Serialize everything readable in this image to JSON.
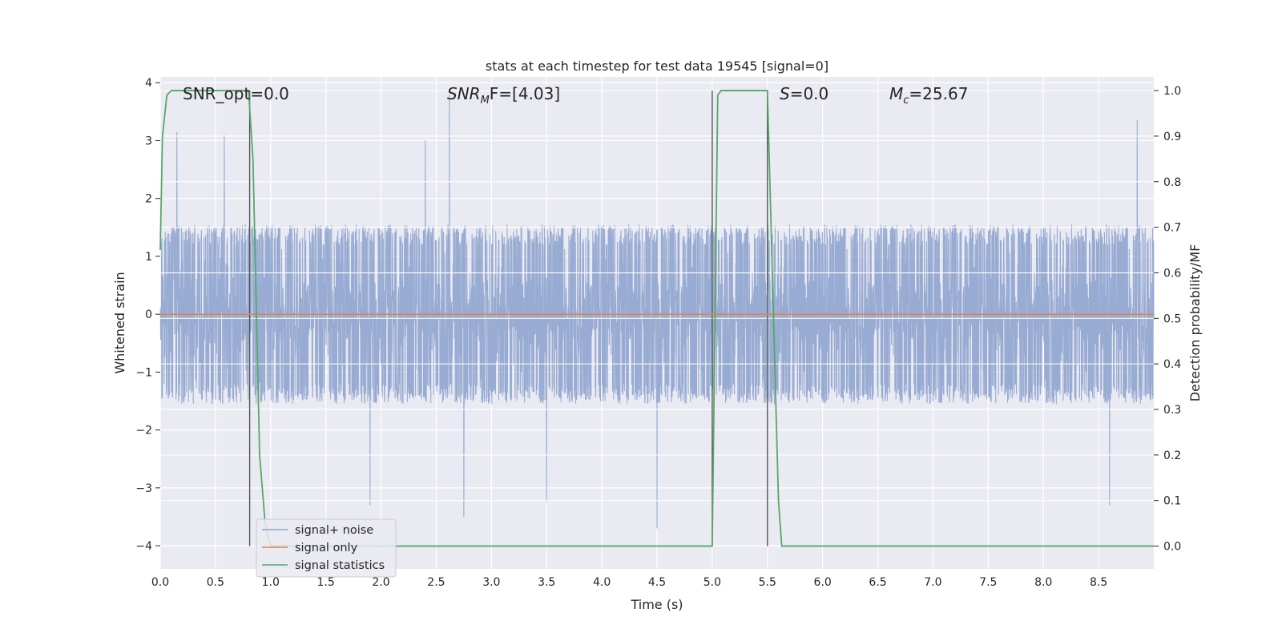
{
  "chart_data": {
    "type": "line",
    "title": "stats at each timestep for test data 19545 [signal=0]",
    "xlabel": "Time (s)",
    "ylabel": "Whitened strain",
    "y2label": "Detection probability/MF",
    "xlim": [
      0.0,
      9.0
    ],
    "ylim": [
      -4.4,
      4.1
    ],
    "y2lim": [
      -0.05,
      1.03
    ],
    "xticks": [
      "0.0",
      "0.5",
      "1.0",
      "1.5",
      "2.0",
      "2.5",
      "3.0",
      "3.5",
      "4.0",
      "4.5",
      "5.0",
      "5.5",
      "6.0",
      "6.5",
      "7.0",
      "7.5",
      "8.0",
      "8.5"
    ],
    "yticks": [
      "4",
      "3",
      "2",
      "1",
      "0",
      "−1",
      "−2",
      "−3",
      "−4"
    ],
    "y2ticks": [
      "1.0",
      "0.9",
      "0.8",
      "0.7",
      "0.6",
      "0.5",
      "0.4",
      "0.3",
      "0.2",
      "0.1",
      "0.0"
    ],
    "grid": true,
    "legend_position": "lower-left",
    "annotations": {
      "snr_opt": "SNR_opt=0.0",
      "snr_mf_main": "SNR",
      "snr_mf_sub": "M",
      "snr_mf_rest": "F=[4.03]",
      "s_main": "S",
      "s_rest": "=0.0",
      "mc_main": "M",
      "mc_sub": "c",
      "mc_rest": "=25.67"
    },
    "vlines": [
      0.81,
      5.0,
      5.5
    ],
    "series": [
      {
        "name": "signal+ noise",
        "color": "#8fa4ce",
        "axis": "left",
        "description": "whitened noise, roughly uniform amplitude about ±1.5 with spikes to ±3.7",
        "sample_rate": 512,
        "peaks": [
          [
            0.15,
            3.15
          ],
          [
            0.58,
            3.1
          ],
          [
            2.62,
            3.8
          ],
          [
            2.4,
            3.0
          ],
          [
            8.85,
            3.35
          ],
          [
            4.5,
            -3.7
          ],
          [
            2.75,
            -3.5
          ],
          [
            1.9,
            -3.3
          ],
          [
            3.5,
            -3.25
          ],
          [
            8.6,
            -3.3
          ]
        ]
      },
      {
        "name": "signal only",
        "color": "#dd8452",
        "axis": "left",
        "x": [
          0.0,
          9.0
        ],
        "y": [
          0.0,
          0.0
        ]
      },
      {
        "name": "signal statistics",
        "color": "#55a868",
        "axis": "right",
        "x": [
          0.0,
          0.02,
          0.06,
          0.1,
          0.8,
          0.84,
          0.9,
          0.95,
          1.0,
          4.95,
          5.0,
          5.05,
          5.08,
          5.5,
          5.6,
          5.63,
          9.0
        ],
        "y": [
          0.65,
          0.9,
          0.99,
          1.0,
          1.0,
          0.85,
          0.2,
          0.05,
          0.0,
          0.0,
          0.0,
          0.99,
          1.0,
          1.0,
          0.1,
          0.0,
          0.0
        ]
      }
    ]
  }
}
